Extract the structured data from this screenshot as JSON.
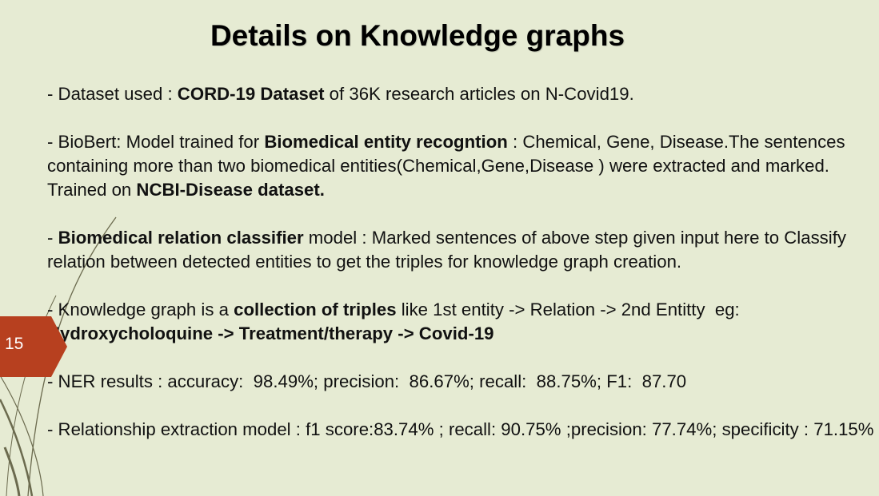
{
  "slide": {
    "title": "Details on Knowledge graphs",
    "page_number": "15",
    "colors": {
      "background": "#e6ebd3",
      "accent": "#b7401f",
      "decor_lines": "#6b6a4e"
    },
    "bullets": [
      {
        "p1": "- Dataset used : ",
        "b1": "CORD-19 Dataset",
        "p2": " of 36K research articles on N-Covid19."
      },
      {
        "p1": "- BioBert: Model trained for ",
        "b1": "Biomedical entity recogntion",
        "p2": " : Chemical, Gene, Disease.The sentences containing more than two biomedical entities(Chemical,Gene,Disease ) were extracted and marked. Trained on ",
        "b2": "NCBI-Disease dataset."
      },
      {
        "p1": "- ",
        "b1": "Biomedical relation classifier",
        "p2": " model : Marked sentences of above step given input here to Classify relation between detected entities to get the triples for knowledge graph creation."
      },
      {
        "p1": "- Knowledge graph is a ",
        "b1": "collection of triples",
        "p2": " like 1st entity -> Relation -> 2nd Entitty  eg: ",
        "b2": "Hydroxycholoquine -> Treatment/therapy -> Covid-19"
      },
      {
        "p1": "- NER results : accuracy:  98.49%; precision:  86.67%; recall:  88.75%; F1:  87.70"
      },
      {
        "p1": "- Relationship extraction model : f1 score:83.74% ; recall: 90.75% ;precision: 77.74%; specificity : 71.15%"
      }
    ]
  }
}
